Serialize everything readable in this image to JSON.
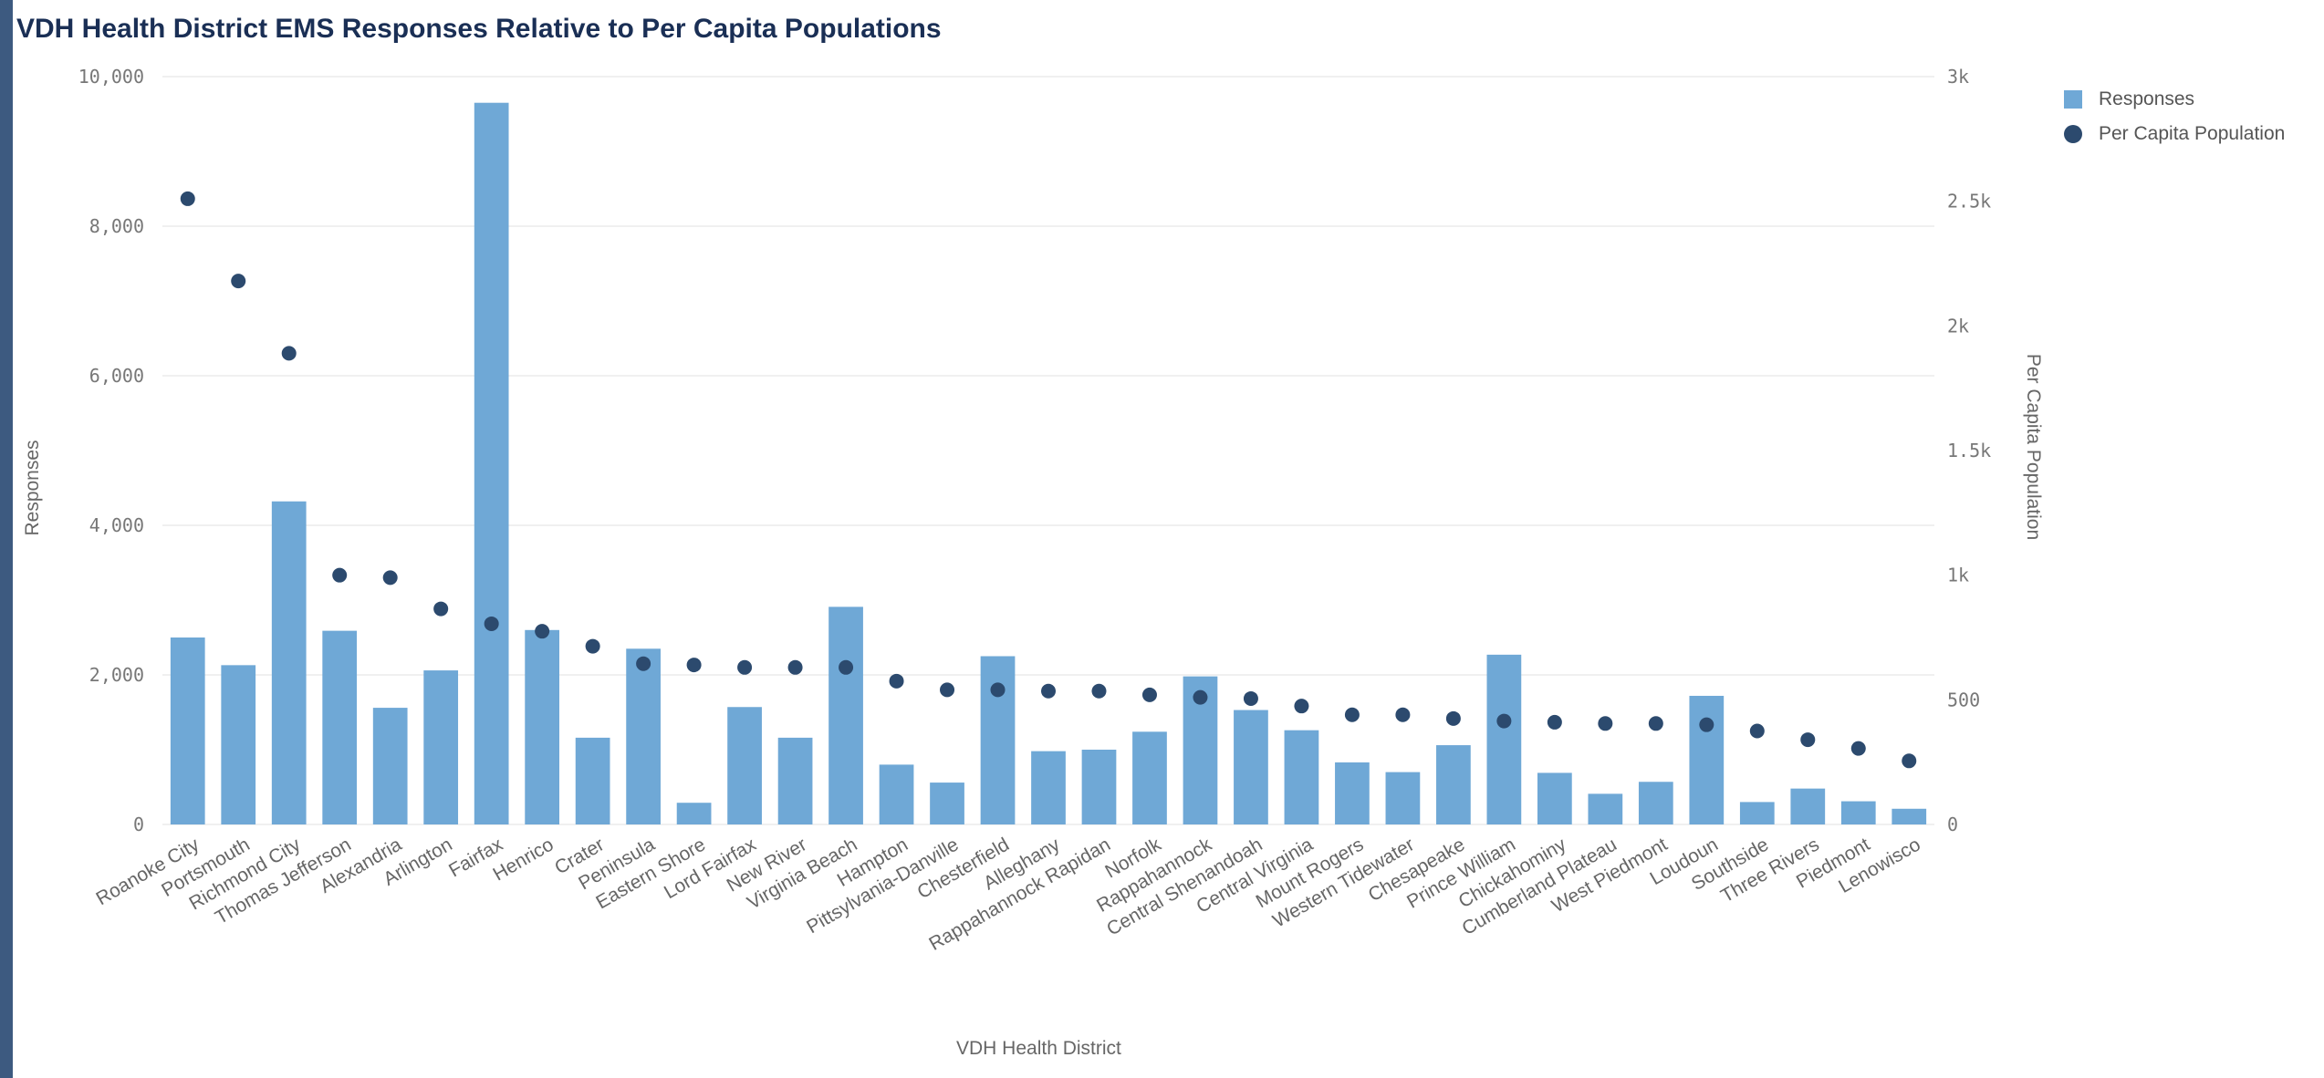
{
  "chart_data": {
    "type": "bar",
    "title": "VDH Health District EMS Responses Relative to Per Capita Populations",
    "xlabel": "VDH Health District",
    "ylabel": "Responses",
    "y2label": "Per Capita Population",
    "ylim": [
      0,
      10000
    ],
    "y2lim": [
      0,
      3000
    ],
    "yticks": [
      "0",
      "2,000",
      "4,000",
      "6,000",
      "8,000",
      "10,000"
    ],
    "y2ticks": [
      "0",
      "500",
      "1k",
      "1.5k",
      "2k",
      "2.5k",
      "3k"
    ],
    "grid": true,
    "legend_position": "top-right",
    "colors": {
      "bars": "#6fa8d6",
      "points": "#2c4a6e"
    },
    "categories": [
      "Roanoke City",
      "Portsmouth",
      "Richmond City",
      "Thomas Jefferson",
      "Alexandria",
      "Arlington",
      "Fairfax",
      "Henrico",
      "Crater",
      "Peninsula",
      "Eastern Shore",
      "Lord Fairfax",
      "New River",
      "Virginia Beach",
      "Hampton",
      "Pittsylvania-Danville",
      "Chesterfield",
      "Alleghany",
      "Rappahannock Rapidan",
      "Norfolk",
      "Rappahannock",
      "Central Shenandoah",
      "Central Virginia",
      "Mount Rogers",
      "Western Tidewater",
      "Chesapeake",
      "Prince William",
      "Chickahominy",
      "Cumberland Plateau",
      "West Piedmont",
      "Loudoun",
      "Southside",
      "Three Rivers",
      "Piedmont",
      "Lenowisco"
    ],
    "series": [
      {
        "name": "Responses",
        "type": "bar",
        "values": [
          2500,
          2130,
          4320,
          2590,
          1560,
          2060,
          9650,
          2600,
          1160,
          2350,
          290,
          1570,
          1160,
          2910,
          800,
          560,
          2250,
          980,
          1000,
          1240,
          1980,
          1530,
          1260,
          830,
          700,
          1060,
          2270,
          690,
          410,
          570,
          1720,
          300,
          480,
          310,
          210
        ]
      },
      {
        "name": "Per Capita Population",
        "type": "scatter",
        "axis": "y2",
        "values": [
          2510,
          2180,
          1890,
          1000,
          990,
          865,
          805,
          775,
          715,
          645,
          640,
          630,
          630,
          630,
          575,
          540,
          540,
          535,
          535,
          520,
          510,
          505,
          475,
          440,
          440,
          425,
          415,
          410,
          405,
          405,
          400,
          375,
          340,
          305,
          255
        ]
      }
    ]
  }
}
